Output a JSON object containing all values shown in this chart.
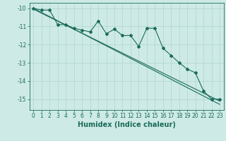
{
  "x": [
    0,
    1,
    2,
    3,
    4,
    5,
    6,
    7,
    8,
    9,
    10,
    11,
    12,
    13,
    14,
    15,
    16,
    17,
    18,
    19,
    20,
    21,
    22,
    23
  ],
  "line1": [
    -10.0,
    -10.1,
    -10.1,
    -10.9,
    -10.9,
    -11.1,
    -11.2,
    -11.3,
    -10.7,
    -11.4,
    -11.15,
    -11.5,
    -11.5,
    -12.1,
    -11.1,
    -11.1,
    -12.2,
    -12.6,
    -13.0,
    -13.35,
    -13.55,
    -14.55,
    -15.0,
    -15.0
  ],
  "line2_reg": [
    -10.0,
    -10.23,
    -10.46,
    -10.69,
    -10.92,
    -11.15,
    -11.38,
    -11.61,
    -11.84,
    -12.07,
    -12.3,
    -12.53,
    -12.76,
    -12.99,
    -13.22,
    -13.45,
    -13.68,
    -13.91,
    -14.14,
    -14.37,
    -14.6,
    -14.83,
    -15.06,
    -15.29
  ],
  "line3_reg": [
    -10.05,
    -10.27,
    -10.49,
    -10.71,
    -10.93,
    -11.15,
    -11.37,
    -11.59,
    -11.81,
    -12.03,
    -12.25,
    -12.47,
    -12.69,
    -12.91,
    -13.13,
    -13.35,
    -13.57,
    -13.79,
    -14.01,
    -14.23,
    -14.45,
    -14.67,
    -14.89,
    -15.11
  ],
  "xlim": [
    -0.5,
    23.5
  ],
  "ylim": [
    -15.6,
    -9.7
  ],
  "xticks": [
    0,
    1,
    2,
    3,
    4,
    5,
    6,
    7,
    8,
    9,
    10,
    11,
    12,
    13,
    14,
    15,
    16,
    17,
    18,
    19,
    20,
    21,
    22,
    23
  ],
  "yticks": [
    -10,
    -11,
    -12,
    -13,
    -14,
    -15
  ],
  "xlabel": "Humidex (Indice chaleur)",
  "background_color": "#ceeae6",
  "grid_color": "#aed4cf",
  "line_color": "#1a6b5a",
  "tick_fontsize": 5.5,
  "label_fontsize": 7.0
}
